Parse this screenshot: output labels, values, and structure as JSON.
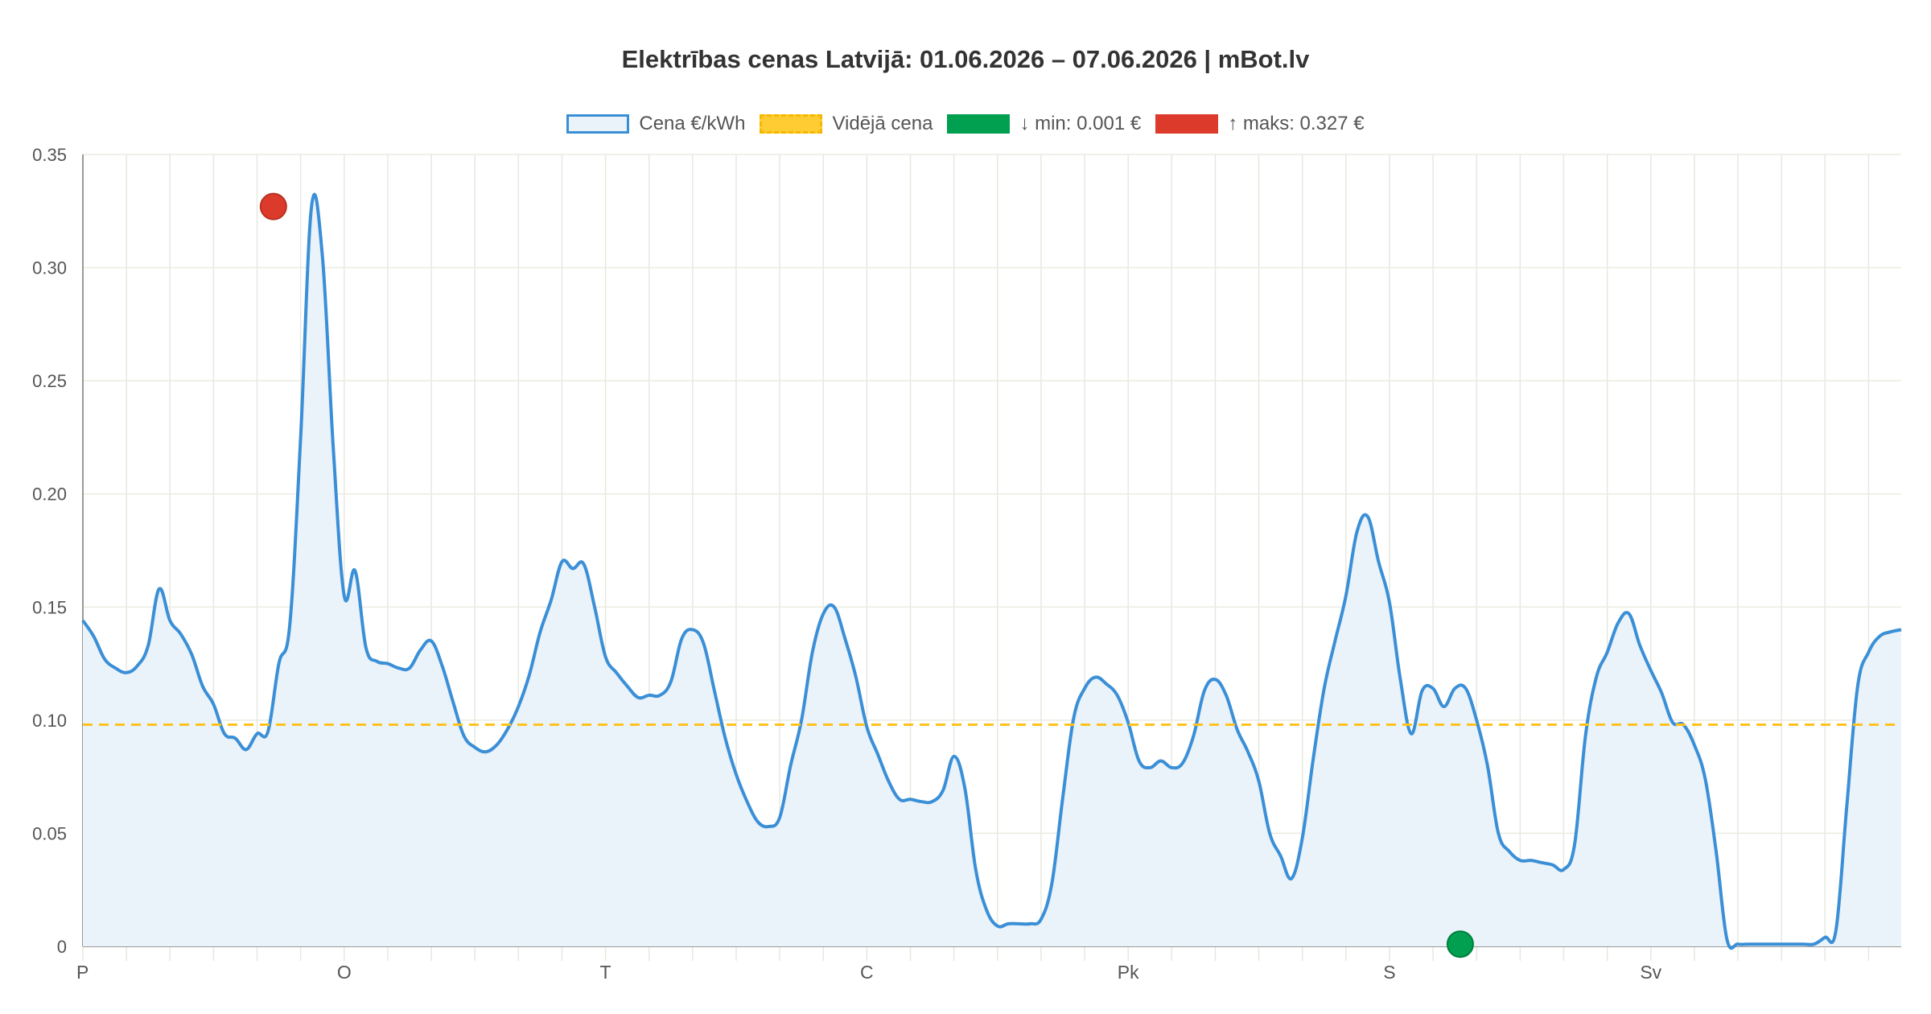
{
  "chart_data": {
    "type": "area",
    "title": "Elektrības cenas Latvijā: 01.06.2026 – 07.06.2026 | mBot.lv",
    "legend": [
      {
        "key": "price",
        "label": "Cena €/kWh",
        "color": "#3a8fd6"
      },
      {
        "key": "avg",
        "label": "Vidējā cena",
        "color": "#ffcc33"
      },
      {
        "key": "min",
        "label": "↓ min: 0.001 €",
        "color": "#00a050"
      },
      {
        "key": "max",
        "label": "↑ maks: 0.327 €",
        "color": "#dc3b2c"
      }
    ],
    "legend_position": "top-center",
    "y_ticks": [
      "0",
      "0.05",
      "0.10",
      "0.15",
      "0.20",
      "0.25",
      "0.30",
      "0.35"
    ],
    "ylim": [
      0,
      0.35
    ],
    "x_day_labels": [
      "P",
      "O",
      "T",
      "C",
      "Pk",
      "S",
      "Sv"
    ],
    "x_hours_total": 167,
    "grid": true,
    "average": 0.098,
    "min": {
      "hour": 126.5,
      "value": 0.001
    },
    "max": {
      "hour": 17.5,
      "value": 0.327
    },
    "series": [
      {
        "name": "Cena €/kWh",
        "points": [
          [
            0,
            0.144
          ],
          [
            1,
            0.137
          ],
          [
            2,
            0.127
          ],
          [
            3,
            0.123
          ],
          [
            4,
            0.121
          ],
          [
            5,
            0.124
          ],
          [
            6,
            0.133
          ],
          [
            7,
            0.158
          ],
          [
            8,
            0.144
          ],
          [
            9,
            0.138
          ],
          [
            10,
            0.129
          ],
          [
            11,
            0.115
          ],
          [
            12,
            0.107
          ],
          [
            13,
            0.094
          ],
          [
            14,
            0.092
          ],
          [
            15,
            0.087
          ],
          [
            16,
            0.094
          ],
          [
            17,
            0.095
          ],
          [
            18,
            0.125
          ],
          [
            19,
            0.142
          ],
          [
            20,
            0.225
          ],
          [
            21,
            0.327
          ],
          [
            22,
            0.305
          ],
          [
            23,
            0.22
          ],
          [
            24,
            0.155
          ],
          [
            25,
            0.166
          ],
          [
            26,
            0.132
          ],
          [
            27,
            0.126
          ],
          [
            28,
            0.125
          ],
          [
            29,
            0.123
          ],
          [
            30,
            0.123
          ],
          [
            31,
            0.131
          ],
          [
            32,
            0.135
          ],
          [
            33,
            0.124
          ],
          [
            34,
            0.108
          ],
          [
            35,
            0.093
          ],
          [
            36,
            0.088
          ],
          [
            37,
            0.086
          ],
          [
            38,
            0.089
          ],
          [
            39,
            0.096
          ],
          [
            40,
            0.106
          ],
          [
            41,
            0.12
          ],
          [
            42,
            0.139
          ],
          [
            43,
            0.153
          ],
          [
            44,
            0.17
          ],
          [
            45,
            0.167
          ],
          [
            46,
            0.169
          ],
          [
            47,
            0.15
          ],
          [
            48,
            0.128
          ],
          [
            49,
            0.121
          ],
          [
            50,
            0.115
          ],
          [
            51,
            0.11
          ],
          [
            52,
            0.111
          ],
          [
            53,
            0.111
          ],
          [
            54,
            0.117
          ],
          [
            55,
            0.136
          ],
          [
            56,
            0.14
          ],
          [
            57,
            0.134
          ],
          [
            58,
            0.113
          ],
          [
            59,
            0.092
          ],
          [
            60,
            0.076
          ],
          [
            61,
            0.064
          ],
          [
            62,
            0.055
          ],
          [
            63,
            0.053
          ],
          [
            64,
            0.057
          ],
          [
            65,
            0.08
          ],
          [
            66,
            0.1
          ],
          [
            67,
            0.13
          ],
          [
            68,
            0.147
          ],
          [
            69,
            0.15
          ],
          [
            70,
            0.136
          ],
          [
            71,
            0.119
          ],
          [
            72,
            0.097
          ],
          [
            73,
            0.085
          ],
          [
            74,
            0.073
          ],
          [
            75,
            0.065
          ],
          [
            76,
            0.065
          ],
          [
            77,
            0.064
          ],
          [
            78,
            0.064
          ],
          [
            79,
            0.069
          ],
          [
            80,
            0.084
          ],
          [
            81,
            0.07
          ],
          [
            82,
            0.034
          ],
          [
            83,
            0.016
          ],
          [
            84,
            0.009
          ],
          [
            85,
            0.01
          ],
          [
            86,
            0.01
          ],
          [
            87,
            0.01
          ],
          [
            88,
            0.012
          ],
          [
            89,
            0.028
          ],
          [
            90,
            0.066
          ],
          [
            91,
            0.101
          ],
          [
            92,
            0.114
          ],
          [
            93,
            0.119
          ],
          [
            94,
            0.116
          ],
          [
            95,
            0.111
          ],
          [
            96,
            0.099
          ],
          [
            97,
            0.082
          ],
          [
            98,
            0.079
          ],
          [
            99,
            0.082
          ],
          [
            100,
            0.079
          ],
          [
            101,
            0.081
          ],
          [
            102,
            0.093
          ],
          [
            103,
            0.113
          ],
          [
            104,
            0.118
          ],
          [
            105,
            0.111
          ],
          [
            106,
            0.096
          ],
          [
            107,
            0.086
          ],
          [
            108,
            0.073
          ],
          [
            109,
            0.05
          ],
          [
            110,
            0.04
          ],
          [
            111,
            0.03
          ],
          [
            112,
            0.048
          ],
          [
            113,
            0.083
          ],
          [
            114,
            0.114
          ],
          [
            115,
            0.135
          ],
          [
            116,
            0.155
          ],
          [
            117,
            0.183
          ],
          [
            118,
            0.19
          ],
          [
            119,
            0.17
          ],
          [
            120,
            0.152
          ],
          [
            121,
            0.118
          ],
          [
            122,
            0.094
          ],
          [
            123,
            0.113
          ],
          [
            124,
            0.114
          ],
          [
            125,
            0.106
          ],
          [
            126,
            0.114
          ],
          [
            127,
            0.114
          ],
          [
            128,
            0.1
          ],
          [
            129,
            0.08
          ],
          [
            130,
            0.05
          ],
          [
            131,
            0.042
          ],
          [
            132,
            0.038
          ],
          [
            133,
            0.038
          ],
          [
            134,
            0.037
          ],
          [
            135,
            0.036
          ],
          [
            136,
            0.034
          ],
          [
            137,
            0.045
          ],
          [
            138,
            0.093
          ],
          [
            139,
            0.119
          ],
          [
            140,
            0.13
          ],
          [
            141,
            0.143
          ],
          [
            142,
            0.147
          ],
          [
            143,
            0.133
          ],
          [
            144,
            0.122
          ],
          [
            145,
            0.112
          ],
          [
            146,
            0.099
          ],
          [
            147,
            0.098
          ],
          [
            148,
            0.089
          ],
          [
            149,
            0.074
          ],
          [
            150,
            0.042
          ],
          [
            151,
            0.003
          ],
          [
            152,
            0.001
          ],
          [
            153,
            0.001
          ],
          [
            154,
            0.001
          ],
          [
            155,
            0.001
          ],
          [
            156,
            0.001
          ],
          [
            157,
            0.001
          ],
          [
            158,
            0.001
          ],
          [
            159,
            0.001
          ],
          [
            160,
            0.004
          ],
          [
            161,
            0.007
          ],
          [
            162,
            0.062
          ],
          [
            163,
            0.115
          ],
          [
            164,
            0.13
          ],
          [
            165,
            0.137
          ],
          [
            166,
            0.139
          ],
          [
            167,
            0.14
          ]
        ]
      }
    ]
  }
}
